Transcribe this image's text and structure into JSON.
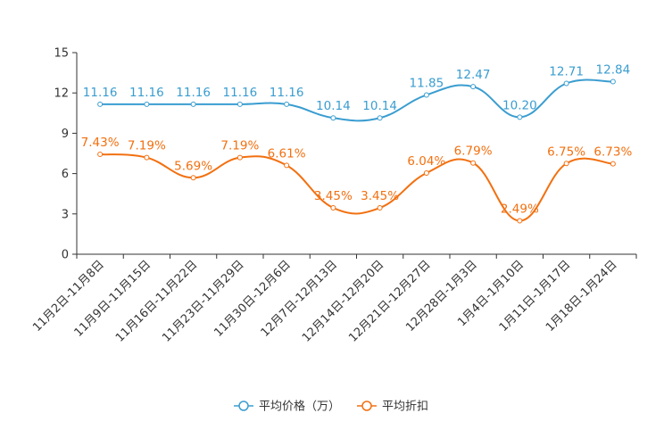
{
  "chart_data": {
    "type": "line",
    "categories": [
      "11月2日-11月8日",
      "11月9日-11月15日",
      "11月16日-11月22日",
      "11月23日-11月29日",
      "11月30日-12月6日",
      "12月7日-12月13日",
      "12月14日-12月20日",
      "12月21日-12月27日",
      "12月28日-1月3日",
      "1月4日-1月10日",
      "1月11日-1月17日",
      "1月18日-1月24日"
    ],
    "series": [
      {
        "name": "平均价格（万）",
        "color": "#3a9dd0",
        "values": [
          11.16,
          11.16,
          11.16,
          11.16,
          11.16,
          10.14,
          10.14,
          11.85,
          12.47,
          10.2,
          12.71,
          12.84
        ],
        "labels": [
          "11.16",
          "11.16",
          "11.16",
          "11.16",
          "11.16",
          "10.14",
          "10.14",
          "11.85",
          "12.47",
          "10.20",
          "12.71",
          "12.84"
        ]
      },
      {
        "name": "平均折扣",
        "color": "#f27010",
        "values": [
          7.43,
          7.19,
          5.69,
          7.19,
          6.61,
          3.45,
          3.45,
          6.04,
          6.79,
          2.49,
          6.75,
          6.73
        ],
        "labels": [
          "7.43%",
          "7.19%",
          "5.69%",
          "7.19%",
          "6.61%",
          "3.45%",
          "3.45%",
          "6.04%",
          "6.79%",
          "2.49%",
          "6.75%",
          "6.73%"
        ]
      }
    ],
    "yticks": [
      "0",
      "3",
      "6",
      "9",
      "12",
      "15"
    ],
    "ylim": [
      0,
      15
    ],
    "title": "",
    "xlabel": "",
    "ylabel": "",
    "legend_position": "bottom-center",
    "grid": false
  }
}
